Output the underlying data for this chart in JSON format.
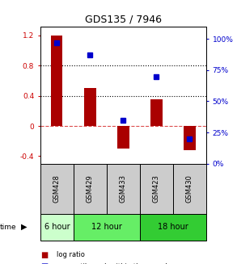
{
  "title": "GDS135 / 7946",
  "samples": [
    "GSM428",
    "GSM429",
    "GSM433",
    "GSM423",
    "GSM430"
  ],
  "log_ratios": [
    1.2,
    0.5,
    -0.3,
    0.35,
    -0.32
  ],
  "percentiles": [
    97,
    87,
    35,
    70,
    20
  ],
  "time_groups": [
    {
      "label": "6 hour",
      "span": [
        0,
        1
      ],
      "color": "#ccffcc"
    },
    {
      "label": "12 hour",
      "span": [
        1,
        3
      ],
      "color": "#66ee66"
    },
    {
      "label": "18 hour",
      "span": [
        3,
        5
      ],
      "color": "#33cc33"
    }
  ],
  "bar_color": "#aa0000",
  "dot_color": "#0000cc",
  "left_ylim": [
    -0.5,
    1.32
  ],
  "right_ylim": [
    0,
    110
  ],
  "left_yticks": [
    -0.4,
    0,
    0.4,
    0.8,
    1.2
  ],
  "right_yticks": [
    0,
    25,
    50,
    75,
    100
  ],
  "hline_y": [
    0.4,
    0.8
  ],
  "zero_line_y": 0,
  "bg_color": "#ffffff",
  "sample_bg_color": "#cccccc",
  "bar_width": 0.35
}
